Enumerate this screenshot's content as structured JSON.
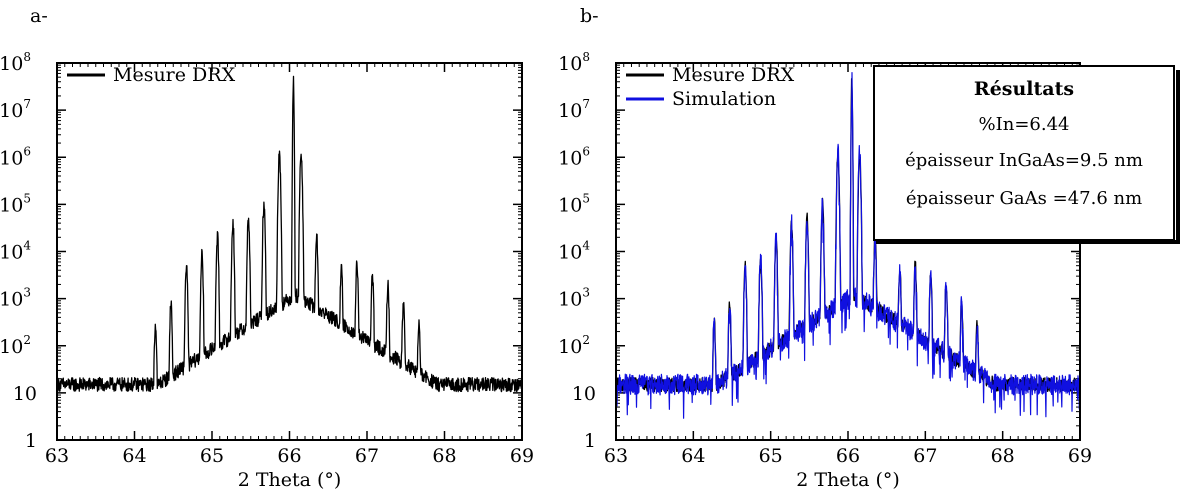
{
  "chart_data": [
    {
      "panel_label": "a-",
      "type": "line",
      "xlabel": "2 Theta (°)",
      "ylabel": "",
      "xlim": [
        63,
        69
      ],
      "ylim": [
        1,
        100000000
      ],
      "yscale": "log",
      "x_ticks": [
        "63",
        "64",
        "65",
        "66",
        "67",
        "68",
        "69"
      ],
      "y_ticks": [
        {
          "base": "1",
          "exp": ""
        },
        {
          "base": "10",
          "exp": ""
        },
        {
          "base": "10",
          "exp": "2"
        },
        {
          "base": "10",
          "exp": "3"
        },
        {
          "base": "10",
          "exp": "4"
        },
        {
          "base": "10",
          "exp": "5"
        },
        {
          "base": "10",
          "exp": "6"
        },
        {
          "base": "10",
          "exp": "7"
        },
        {
          "base": "10",
          "exp": "8"
        }
      ],
      "legend_position": "top-left",
      "series": [
        {
          "name": "Mesure DRX",
          "color": "#000000",
          "style": "noisy diffraction trace with thickness fringes",
          "peak_x": [
            64.27,
            64.47,
            64.67,
            64.87,
            65.07,
            65.27,
            65.47,
            65.67,
            65.87,
            66.05,
            66.15,
            66.35,
            66.67,
            66.87,
            67.07,
            67.27,
            67.47,
            67.67
          ],
          "peak_y": [
            300,
            800,
            5000,
            8000,
            20000,
            40000,
            50000,
            100000,
            1200000,
            40000000,
            1200000,
            20000,
            4000,
            5000,
            3000,
            2000,
            800,
            300
          ],
          "background_y": 15
        }
      ]
    },
    {
      "panel_label": "b-",
      "type": "line",
      "xlabel": "2 Theta (°)",
      "ylabel": "",
      "xlim": [
        63,
        69
      ],
      "ylim": [
        1,
        100000000
      ],
      "yscale": "log",
      "x_ticks": [
        "63",
        "64",
        "65",
        "66",
        "67",
        "68",
        "69"
      ],
      "y_ticks": [
        {
          "base": "1",
          "exp": ""
        },
        {
          "base": "10",
          "exp": ""
        },
        {
          "base": "10",
          "exp": "2"
        },
        {
          "base": "10",
          "exp": "3"
        },
        {
          "base": "10",
          "exp": "4"
        },
        {
          "base": "10",
          "exp": "5"
        },
        {
          "base": "10",
          "exp": "6"
        },
        {
          "base": "10",
          "exp": "7"
        },
        {
          "base": "10",
          "exp": "8"
        }
      ],
      "legend_position": "top-left",
      "series": [
        {
          "name": "Mesure DRX",
          "color": "#000000",
          "peak_x": [
            64.27,
            64.47,
            64.67,
            64.87,
            65.07,
            65.27,
            65.47,
            65.67,
            65.87,
            66.05,
            66.15,
            66.35,
            66.67,
            66.87,
            67.07,
            67.27,
            67.47,
            67.67
          ],
          "peak_y": [
            300,
            800,
            5000,
            8000,
            20000,
            40000,
            50000,
            100000,
            1200000,
            40000000,
            1200000,
            20000,
            4000,
            5000,
            3000,
            2000,
            800,
            300
          ],
          "background_y": 15
        },
        {
          "name": "Simulation",
          "color": "#1010e0",
          "peak_x": [
            64.27,
            64.47,
            64.67,
            64.87,
            65.07,
            65.27,
            65.47,
            65.67,
            65.87,
            66.05,
            66.15,
            66.35,
            66.67,
            66.87,
            67.07,
            67.27,
            67.47,
            67.67
          ],
          "peak_y": [
            300,
            800,
            5000,
            8000,
            20000,
            40000,
            50000,
            100000,
            1200000,
            45000000,
            1200000,
            20000,
            4000,
            5000,
            3000,
            2000,
            800,
            300
          ],
          "background_y": 15
        }
      ],
      "results_box": {
        "title": "Résultats",
        "lines": [
          "%In=6.44",
          "épaisseur InGaAs=9.5 nm",
          "épaisseur GaAs =47.6 nm"
        ]
      }
    }
  ]
}
